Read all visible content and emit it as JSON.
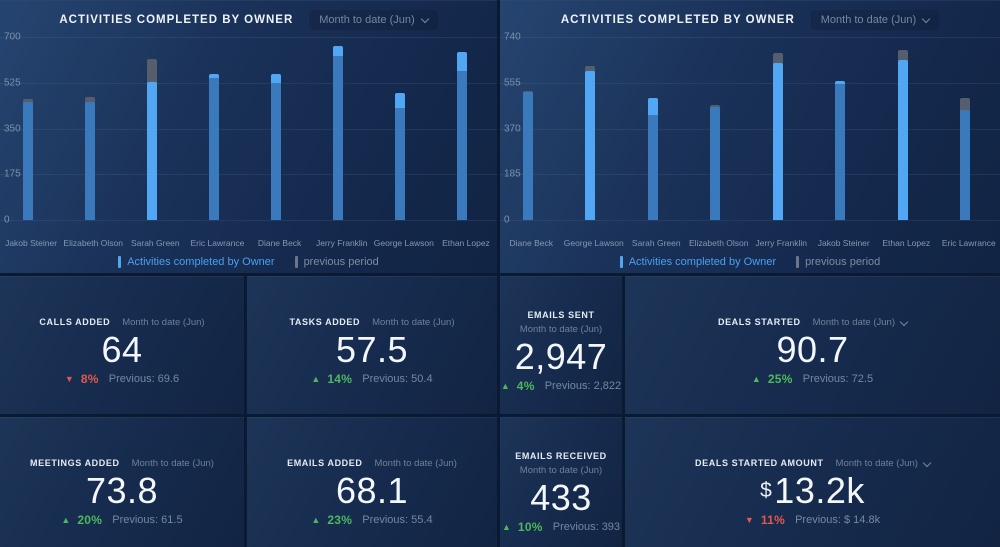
{
  "colors": {
    "positive": "#4db85c",
    "negative": "#e2584c",
    "bar_current_bright": "#52a7f4",
    "bar_current_muted": "#3a7abc",
    "bar_previous": "#545e6c",
    "legend_current_text": "#4aa0ee",
    "legend_previous_text": "#7f8b9f"
  },
  "chart_data": [
    {
      "type": "bar",
      "title": "ACTIVITIES COMPLETED BY OWNER",
      "range_selector": "Month to date (Jun)",
      "categories": [
        "Jakob Steiner",
        "Elizabeth Olson",
        "Sarah Green",
        "Eric Lawrance",
        "Diane Beck",
        "Jerry Franklin",
        "George Lawson",
        "Ethan Lopez"
      ],
      "series": [
        {
          "name": "Activities completed by Owner",
          "color": "#52a7f4",
          "values": [
            452,
            452,
            528,
            560,
            559,
            665,
            487,
            643
          ]
        },
        {
          "name": "previous period",
          "color": "#545e6c",
          "values": [
            463,
            472,
            615,
            545,
            525,
            627,
            429,
            569
          ]
        }
      ],
      "ylim": [
        0,
        700
      ],
      "y_ticks": [
        0,
        175,
        350,
        525,
        700
      ],
      "grid": true,
      "legend_position": "bottom",
      "highlight_full_bars": [
        false,
        false,
        true,
        false,
        false,
        false,
        false,
        false
      ]
    },
    {
      "type": "bar",
      "title": "ACTIVITIES COMPLETED BY OWNER",
      "range_selector": "Month to date (Jun)",
      "categories": [
        "Diane Beck",
        "George Lawson",
        "Sarah Green",
        "Elizabeth Olson",
        "Jerry Franklin",
        "Jakob Steiner",
        "Ethan Lopez",
        "Eric Lawrance"
      ],
      "series": [
        {
          "name": "Activities completed by Owner",
          "color": "#52a7f4",
          "values": [
            519,
            602,
            494,
            457,
            635,
            564,
            649,
            443
          ]
        },
        {
          "name": "previous period",
          "color": "#545e6c",
          "values": [
            522,
            622,
            425,
            466,
            675,
            548,
            689,
            494
          ]
        }
      ],
      "ylim": [
        0,
        740
      ],
      "y_ticks": [
        0,
        185,
        370,
        555,
        740
      ],
      "grid": true,
      "legend_position": "bottom",
      "highlight_full_bars": [
        false,
        true,
        false,
        false,
        true,
        false,
        true,
        false
      ]
    }
  ],
  "tiles": [
    {
      "title": "CALLS ADDED",
      "range": "Month to date (Jun)",
      "stacked": false,
      "dropdown": false,
      "currency": "",
      "value": "64",
      "change_dir": "down",
      "change_pct": "8%",
      "previous": "Previous: 69.6"
    },
    {
      "title": "TASKS ADDED",
      "range": "Month to date (Jun)",
      "stacked": false,
      "dropdown": false,
      "currency": "",
      "value": "57.5",
      "change_dir": "up",
      "change_pct": "14%",
      "previous": "Previous: 50.4"
    },
    {
      "title": "EMAILS SENT",
      "range": "Month to date (Jun)",
      "stacked": true,
      "dropdown": false,
      "currency": "",
      "value": "2,947",
      "change_dir": "up",
      "change_pct": "4%",
      "previous": "Previous: 2,822"
    },
    {
      "title": "DEALS STARTED",
      "range": "Month to date (Jun)",
      "stacked": false,
      "dropdown": true,
      "currency": "",
      "value": "90.7",
      "change_dir": "up",
      "change_pct": "25%",
      "previous": "Previous: 72.5"
    },
    {
      "title": "MEETINGS ADDED",
      "range": "Month to date (Jun)",
      "stacked": false,
      "dropdown": false,
      "currency": "",
      "value": "73.8",
      "change_dir": "up",
      "change_pct": "20%",
      "previous": "Previous: 61.5"
    },
    {
      "title": "EMAILS ADDED",
      "range": "Month to date (Jun)",
      "stacked": false,
      "dropdown": false,
      "currency": "",
      "value": "68.1",
      "change_dir": "up",
      "change_pct": "23%",
      "previous": "Previous: 55.4"
    },
    {
      "title": "EMAILS RECEIVED",
      "range": "Month to date (Jun)",
      "stacked": true,
      "dropdown": false,
      "currency": "",
      "value": "433",
      "change_dir": "up",
      "change_pct": "10%",
      "previous": "Previous: 393"
    },
    {
      "title": "DEALS STARTED AMOUNT",
      "range": "Month to date (Jun)",
      "stacked": false,
      "dropdown": true,
      "currency": "$",
      "value": "13.2k",
      "change_dir": "down",
      "change_pct": "11%",
      "previous": "Previous: $ 14.8k"
    }
  ],
  "icons": {
    "triangle_up": "▲",
    "triangle_down": "▼"
  }
}
